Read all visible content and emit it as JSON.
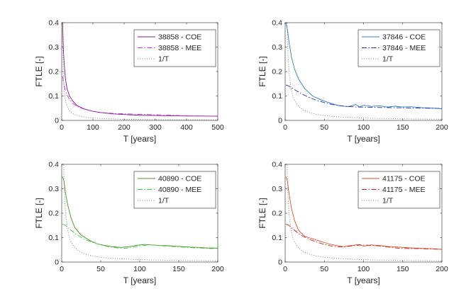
{
  "chart_data": [
    {
      "type": "line",
      "xlabel": "T [years]",
      "ylabel": "FTLE [-]",
      "xlim": [
        0,
        500
      ],
      "ylim": [
        0,
        0.4
      ],
      "xticks": [
        "0",
        "100",
        "200",
        "300",
        "400",
        "500"
      ],
      "yticks": [
        "0",
        "0.1",
        "0.2",
        "0.3",
        "0.4"
      ],
      "legend_position": "top-right",
      "series": [
        {
          "name": "38858 - COE",
          "style": "solid",
          "color": "#7b1a8a",
          "x": [
            3,
            5,
            8,
            12,
            17,
            25,
            35,
            50,
            70,
            90,
            120,
            160,
            200,
            250,
            300,
            350,
            400,
            450,
            500
          ],
          "y": [
            0.4,
            0.3,
            0.23,
            0.17,
            0.13,
            0.1,
            0.08,
            0.06,
            0.048,
            0.04,
            0.033,
            0.027,
            0.024,
            0.021,
            0.02,
            0.019,
            0.018,
            0.018,
            0.017
          ]
        },
        {
          "name": "38858 - MEE",
          "style": "dashdot",
          "color": "#d12fd1",
          "x": [
            3,
            5,
            10,
            15,
            25,
            35,
            50,
            70,
            90,
            120,
            160,
            200,
            250,
            300,
            350,
            400,
            450,
            500
          ],
          "y": [
            0.18,
            0.16,
            0.13,
            0.11,
            0.085,
            0.07,
            0.057,
            0.047,
            0.04,
            0.033,
            0.029,
            0.027,
            0.025,
            0.023,
            0.021,
            0.019,
            0.018,
            0.017
          ]
        },
        {
          "name": "1/T",
          "style": "dotted",
          "color": "#8a8a8a",
          "func": "reciprocal",
          "xmin": 2.4
        }
      ]
    },
    {
      "type": "line",
      "xlabel": "T [years]",
      "ylabel": "FTLE [-]",
      "xlim": [
        0,
        200
      ],
      "ylim": [
        0,
        0.4
      ],
      "xticks": [
        "0",
        "50",
        "100",
        "150",
        "200"
      ],
      "yticks": [
        "0",
        "0.1",
        "0.2",
        "0.3",
        "0.4"
      ],
      "legend_position": "top-right",
      "series": [
        {
          "name": "37846 - COE",
          "style": "solid",
          "color": "#2f7fbf",
          "x": [
            1,
            3,
            5,
            8,
            12,
            17,
            25,
            35,
            45,
            60,
            70,
            80,
            85,
            90,
            95,
            100,
            110,
            120,
            130,
            140,
            150,
            160,
            175,
            190,
            200
          ],
          "y": [
            0.4,
            0.37,
            0.32,
            0.26,
            0.21,
            0.17,
            0.13,
            0.1,
            0.085,
            0.068,
            0.06,
            0.056,
            0.06,
            0.065,
            0.055,
            0.062,
            0.057,
            0.06,
            0.055,
            0.058,
            0.055,
            0.056,
            0.052,
            0.05,
            0.048
          ]
        },
        {
          "name": "37846 - MEE",
          "style": "dashdot",
          "color": "#1f2fb0",
          "x": [
            1,
            5,
            10,
            20,
            30,
            40,
            50,
            60,
            70,
            80,
            90,
            100,
            120,
            140,
            160,
            180,
            200
          ],
          "y": [
            0.145,
            0.14,
            0.13,
            0.11,
            0.095,
            0.082,
            0.073,
            0.065,
            0.06,
            0.057,
            0.055,
            0.054,
            0.053,
            0.052,
            0.051,
            0.05,
            0.049
          ]
        },
        {
          "name": "1/T",
          "style": "dotted",
          "color": "#8a8a8a",
          "func": "reciprocal",
          "xmin": 2.4
        }
      ]
    },
    {
      "type": "line",
      "xlabel": "T [years]",
      "ylabel": "FTLE [-]",
      "xlim": [
        0,
        200
      ],
      "ylim": [
        0,
        0.4
      ],
      "xticks": [
        "0",
        "50",
        "100",
        "150",
        "200"
      ],
      "yticks": [
        "0",
        "0.1",
        "0.2",
        "0.3",
        "0.4"
      ],
      "legend_position": "top-right",
      "series": [
        {
          "name": "40890 - COE",
          "style": "solid",
          "color": "#4f8f2a",
          "x": [
            1,
            3,
            5,
            8,
            12,
            17,
            25,
            35,
            45,
            55,
            65,
            75,
            85,
            95,
            105,
            115,
            125,
            135,
            145,
            155,
            165,
            175,
            185,
            200
          ],
          "y": [
            0.35,
            0.33,
            0.28,
            0.23,
            0.18,
            0.14,
            0.11,
            0.09,
            0.075,
            0.068,
            0.063,
            0.06,
            0.062,
            0.068,
            0.072,
            0.07,
            0.068,
            0.067,
            0.065,
            0.063,
            0.061,
            0.06,
            0.058,
            0.057
          ]
        },
        {
          "name": "40890 - MEE",
          "style": "dashdot",
          "color": "#3ccf3c",
          "x": [
            1,
            5,
            10,
            20,
            30,
            40,
            50,
            60,
            70,
            80,
            90,
            100,
            110,
            120,
            130,
            140,
            150,
            160,
            170,
            180,
            190,
            200
          ],
          "y": [
            0.155,
            0.15,
            0.135,
            0.11,
            0.092,
            0.08,
            0.07,
            0.063,
            0.058,
            0.056,
            0.06,
            0.066,
            0.07,
            0.069,
            0.066,
            0.064,
            0.062,
            0.06,
            0.058,
            0.057,
            0.055,
            0.056
          ]
        },
        {
          "name": "1/T",
          "style": "dotted",
          "color": "#8a8a8a",
          "func": "reciprocal",
          "xmin": 2.4
        }
      ]
    },
    {
      "type": "line",
      "xlabel": "T [years]",
      "ylabel": "FTLE [-]",
      "xlim": [
        0,
        200
      ],
      "ylim": [
        0,
        0.4
      ],
      "xticks": [
        "0",
        "50",
        "100",
        "150",
        "200"
      ],
      "yticks": [
        "0",
        "0.1",
        "0.2",
        "0.3",
        "0.4"
      ],
      "legend_position": "top-right",
      "series": [
        {
          "name": "41175 - COE",
          "style": "solid",
          "color": "#e2502a",
          "x": [
            1,
            3,
            5,
            8,
            12,
            17,
            25,
            30,
            35,
            45,
            55,
            65,
            75,
            85,
            95,
            100,
            110,
            120,
            130,
            140,
            150,
            160,
            175,
            190,
            200
          ],
          "y": [
            0.35,
            0.33,
            0.28,
            0.22,
            0.17,
            0.13,
            0.105,
            0.1,
            0.095,
            0.085,
            0.075,
            0.068,
            0.063,
            0.068,
            0.072,
            0.065,
            0.07,
            0.068,
            0.064,
            0.062,
            0.06,
            0.058,
            0.056,
            0.054,
            0.052
          ]
        },
        {
          "name": "41175 - MEE",
          "style": "dashdot",
          "color": "#d41f1f",
          "x": [
            1,
            5,
            10,
            20,
            30,
            40,
            50,
            60,
            70,
            80,
            90,
            100,
            110,
            120,
            130,
            140,
            150,
            160,
            170,
            180,
            190,
            200
          ],
          "y": [
            0.155,
            0.15,
            0.135,
            0.11,
            0.094,
            0.082,
            0.072,
            0.065,
            0.062,
            0.064,
            0.068,
            0.07,
            0.068,
            0.066,
            0.062,
            0.058,
            0.056,
            0.055,
            0.055,
            0.054,
            0.053,
            0.052
          ]
        },
        {
          "name": "1/T",
          "style": "dotted",
          "color": "#8a8a8a",
          "func": "reciprocal",
          "xmin": 2.4
        }
      ]
    }
  ]
}
